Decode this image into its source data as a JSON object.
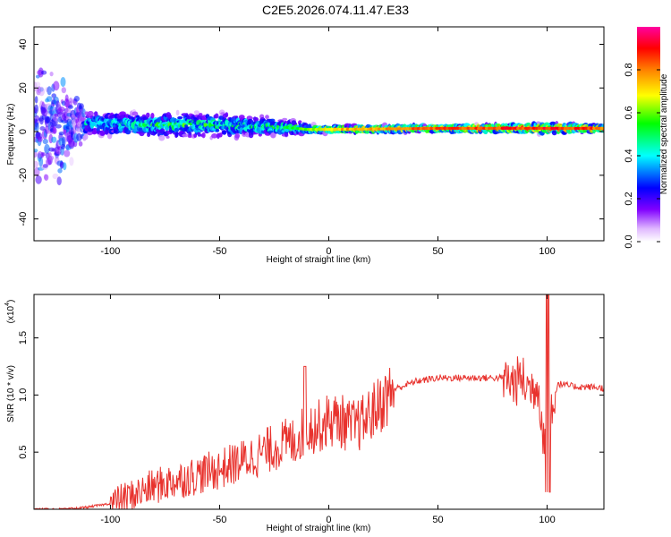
{
  "title": "C2E5.2026.074.11.47.E33",
  "chart_data": [
    {
      "type": "heatmap",
      "xlabel": "Height of straight line (km)",
      "ylabel": "Frequency (Hz)",
      "xlim": [
        -135,
        126
      ],
      "ylim": [
        -50,
        48
      ],
      "xticks": [
        -100,
        -50,
        0,
        50,
        100
      ],
      "xtick_labels": [
        "-100",
        "-50",
        "0",
        "50",
        "100"
      ],
      "yticks": [
        -40,
        -20,
        0,
        20,
        40
      ],
      "ytick_labels": [
        "-40",
        "-20",
        "0",
        "20",
        "40"
      ],
      "grid": false,
      "colorbar": {
        "label": "Normalized spectral amplitude",
        "range": [
          0,
          1
        ],
        "ticks": [
          0.0,
          0.2,
          0.4,
          0.6,
          0.8
        ],
        "tick_labels": [
          "0.0",
          "0.2",
          "0.4",
          "0.6",
          "0.8"
        ],
        "colormap": [
          "#ffffff",
          "#8000ff",
          "#0000ff",
          "#00ffff",
          "#00ff00",
          "#ffff00",
          "#ff8000",
          "#ff0000",
          "#ff00ff"
        ]
      },
      "ridge": [
        {
          "x": -135,
          "freq": 0,
          "amplitude": 0.15,
          "spread": 45
        },
        {
          "x": -110,
          "freq": 4,
          "amplitude": 0.4,
          "spread": 7
        },
        {
          "x": -80,
          "freq": 3,
          "amplitude": 0.5,
          "spread": 7
        },
        {
          "x": -50,
          "freq": 3,
          "amplitude": 0.5,
          "spread": 7
        },
        {
          "x": -20,
          "freq": 2,
          "amplitude": 0.5,
          "spread": 5
        },
        {
          "x": -10,
          "freq": 1,
          "amplitude": 0.6,
          "spread": 3
        },
        {
          "x": 0,
          "freq": 1,
          "amplitude": 0.75,
          "spread": 2
        },
        {
          "x": 50,
          "freq": 1.5,
          "amplitude": 0.85,
          "spread": 2
        },
        {
          "x": 100,
          "freq": 1.5,
          "amplitude": 0.9,
          "spread": 3
        },
        {
          "x": 126,
          "freq": 1.5,
          "amplitude": 0.85,
          "spread": 2
        }
      ]
    },
    {
      "type": "line",
      "xlabel": "Height of straight line (km)",
      "ylabel": "SNR (10 * v/v)",
      "y_multiplier_label": "(x10",
      "y_multiplier_exponent": "4",
      "y_multiplier_close": ")",
      "xlim": [
        -135,
        126
      ],
      "ylim": [
        0,
        1.88
      ],
      "xticks": [
        -100,
        -50,
        0,
        50,
        100
      ],
      "xtick_labels": [
        "-100",
        "-50",
        "0",
        "50",
        "100"
      ],
      "yticks": [
        0.5,
        1.0,
        1.5
      ],
      "ytick_labels": [
        "0.5",
        "1.0",
        "1.5"
      ],
      "grid": false,
      "series": [
        {
          "color": "#e8322d",
          "x": [
            -135,
            -120,
            -110,
            -100,
            -90,
            -80,
            -70,
            -60,
            -50,
            -40,
            -30,
            -20,
            -15,
            -10,
            -5,
            0,
            5,
            10,
            15,
            20,
            25,
            30,
            40,
            50,
            60,
            70,
            80,
            85,
            88,
            92,
            96,
            98,
            100,
            102,
            105,
            110,
            115,
            120,
            126
          ],
          "y": [
            0.0,
            0.0,
            0.02,
            0.05,
            0.12,
            0.2,
            0.25,
            0.3,
            0.35,
            0.42,
            0.5,
            0.58,
            0.6,
            0.72,
            0.72,
            0.78,
            0.78,
            0.72,
            0.75,
            0.85,
            0.95,
            1.05,
            1.12,
            1.15,
            1.15,
            1.15,
            1.15,
            1.1,
            1.15,
            1.05,
            1.1,
            0.7,
            0.3,
            0.9,
            1.1,
            1.08,
            1.07,
            1.07,
            1.06
          ]
        }
      ]
    }
  ]
}
